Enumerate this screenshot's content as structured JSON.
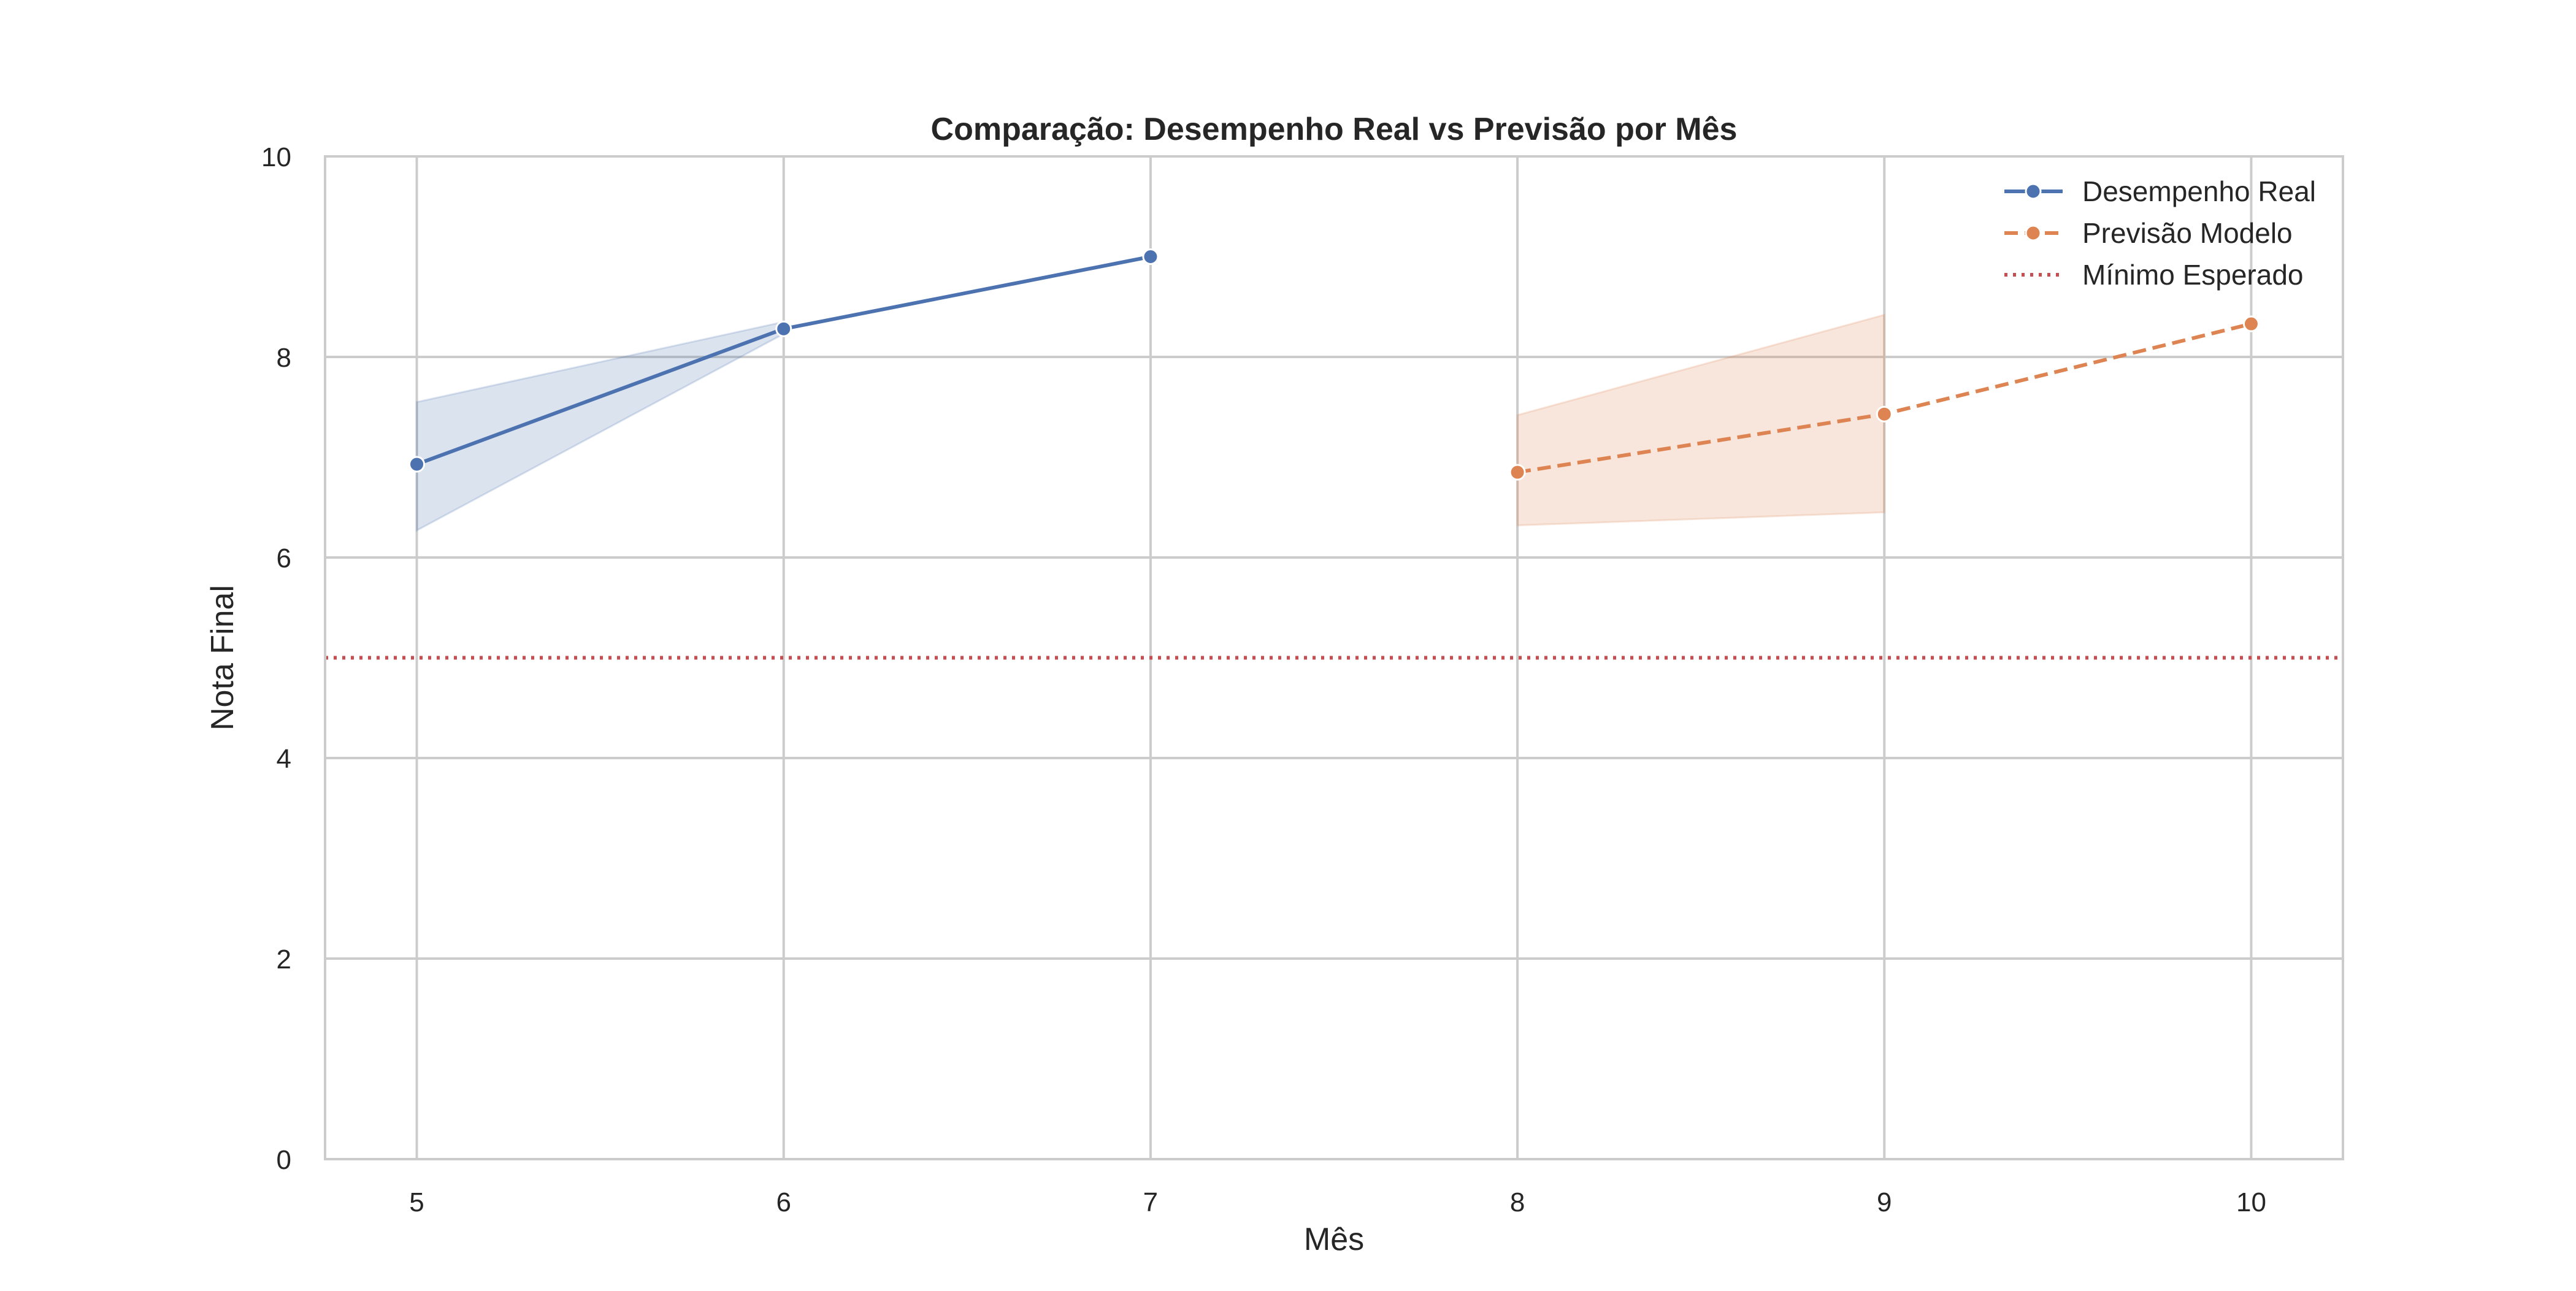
{
  "chart_data": {
    "type": "line",
    "title": "Comparação: Desempenho Real vs Previsão por Mês",
    "xlabel": "Mês",
    "ylabel": "Nota Final",
    "xlim": [
      4.75,
      10.25
    ],
    "ylim": [
      0,
      10
    ],
    "xticks": [
      5,
      6,
      7,
      8,
      9,
      10
    ],
    "yticks": [
      0,
      2,
      4,
      6,
      8,
      10
    ],
    "grid": true,
    "legend_position": "top-right",
    "series": [
      {
        "name": "Desempenho Real",
        "color": "#4c72b0",
        "linestyle": "solid",
        "marker": "circle",
        "x": [
          5,
          6,
          7
        ],
        "y": [
          6.93,
          8.28,
          9.0
        ],
        "band": {
          "x": [
            5,
            6
          ],
          "lower": [
            6.27,
            8.23
          ],
          "upper": [
            7.55,
            8.35
          ]
        }
      },
      {
        "name": "Previsão Modelo",
        "color": "#dd8452",
        "linestyle": "dashed",
        "marker": "circle",
        "x": [
          8,
          9,
          10
        ],
        "y": [
          6.85,
          7.43,
          8.33
        ],
        "band": {
          "x": [
            8,
            9
          ],
          "lower": [
            6.32,
            6.45
          ],
          "upper": [
            7.42,
            8.42
          ]
        }
      }
    ],
    "reference_lines": [
      {
        "name": "Mínimo Esperado",
        "y": 5,
        "color": "#c44e52",
        "linestyle": "dotted"
      }
    ]
  }
}
